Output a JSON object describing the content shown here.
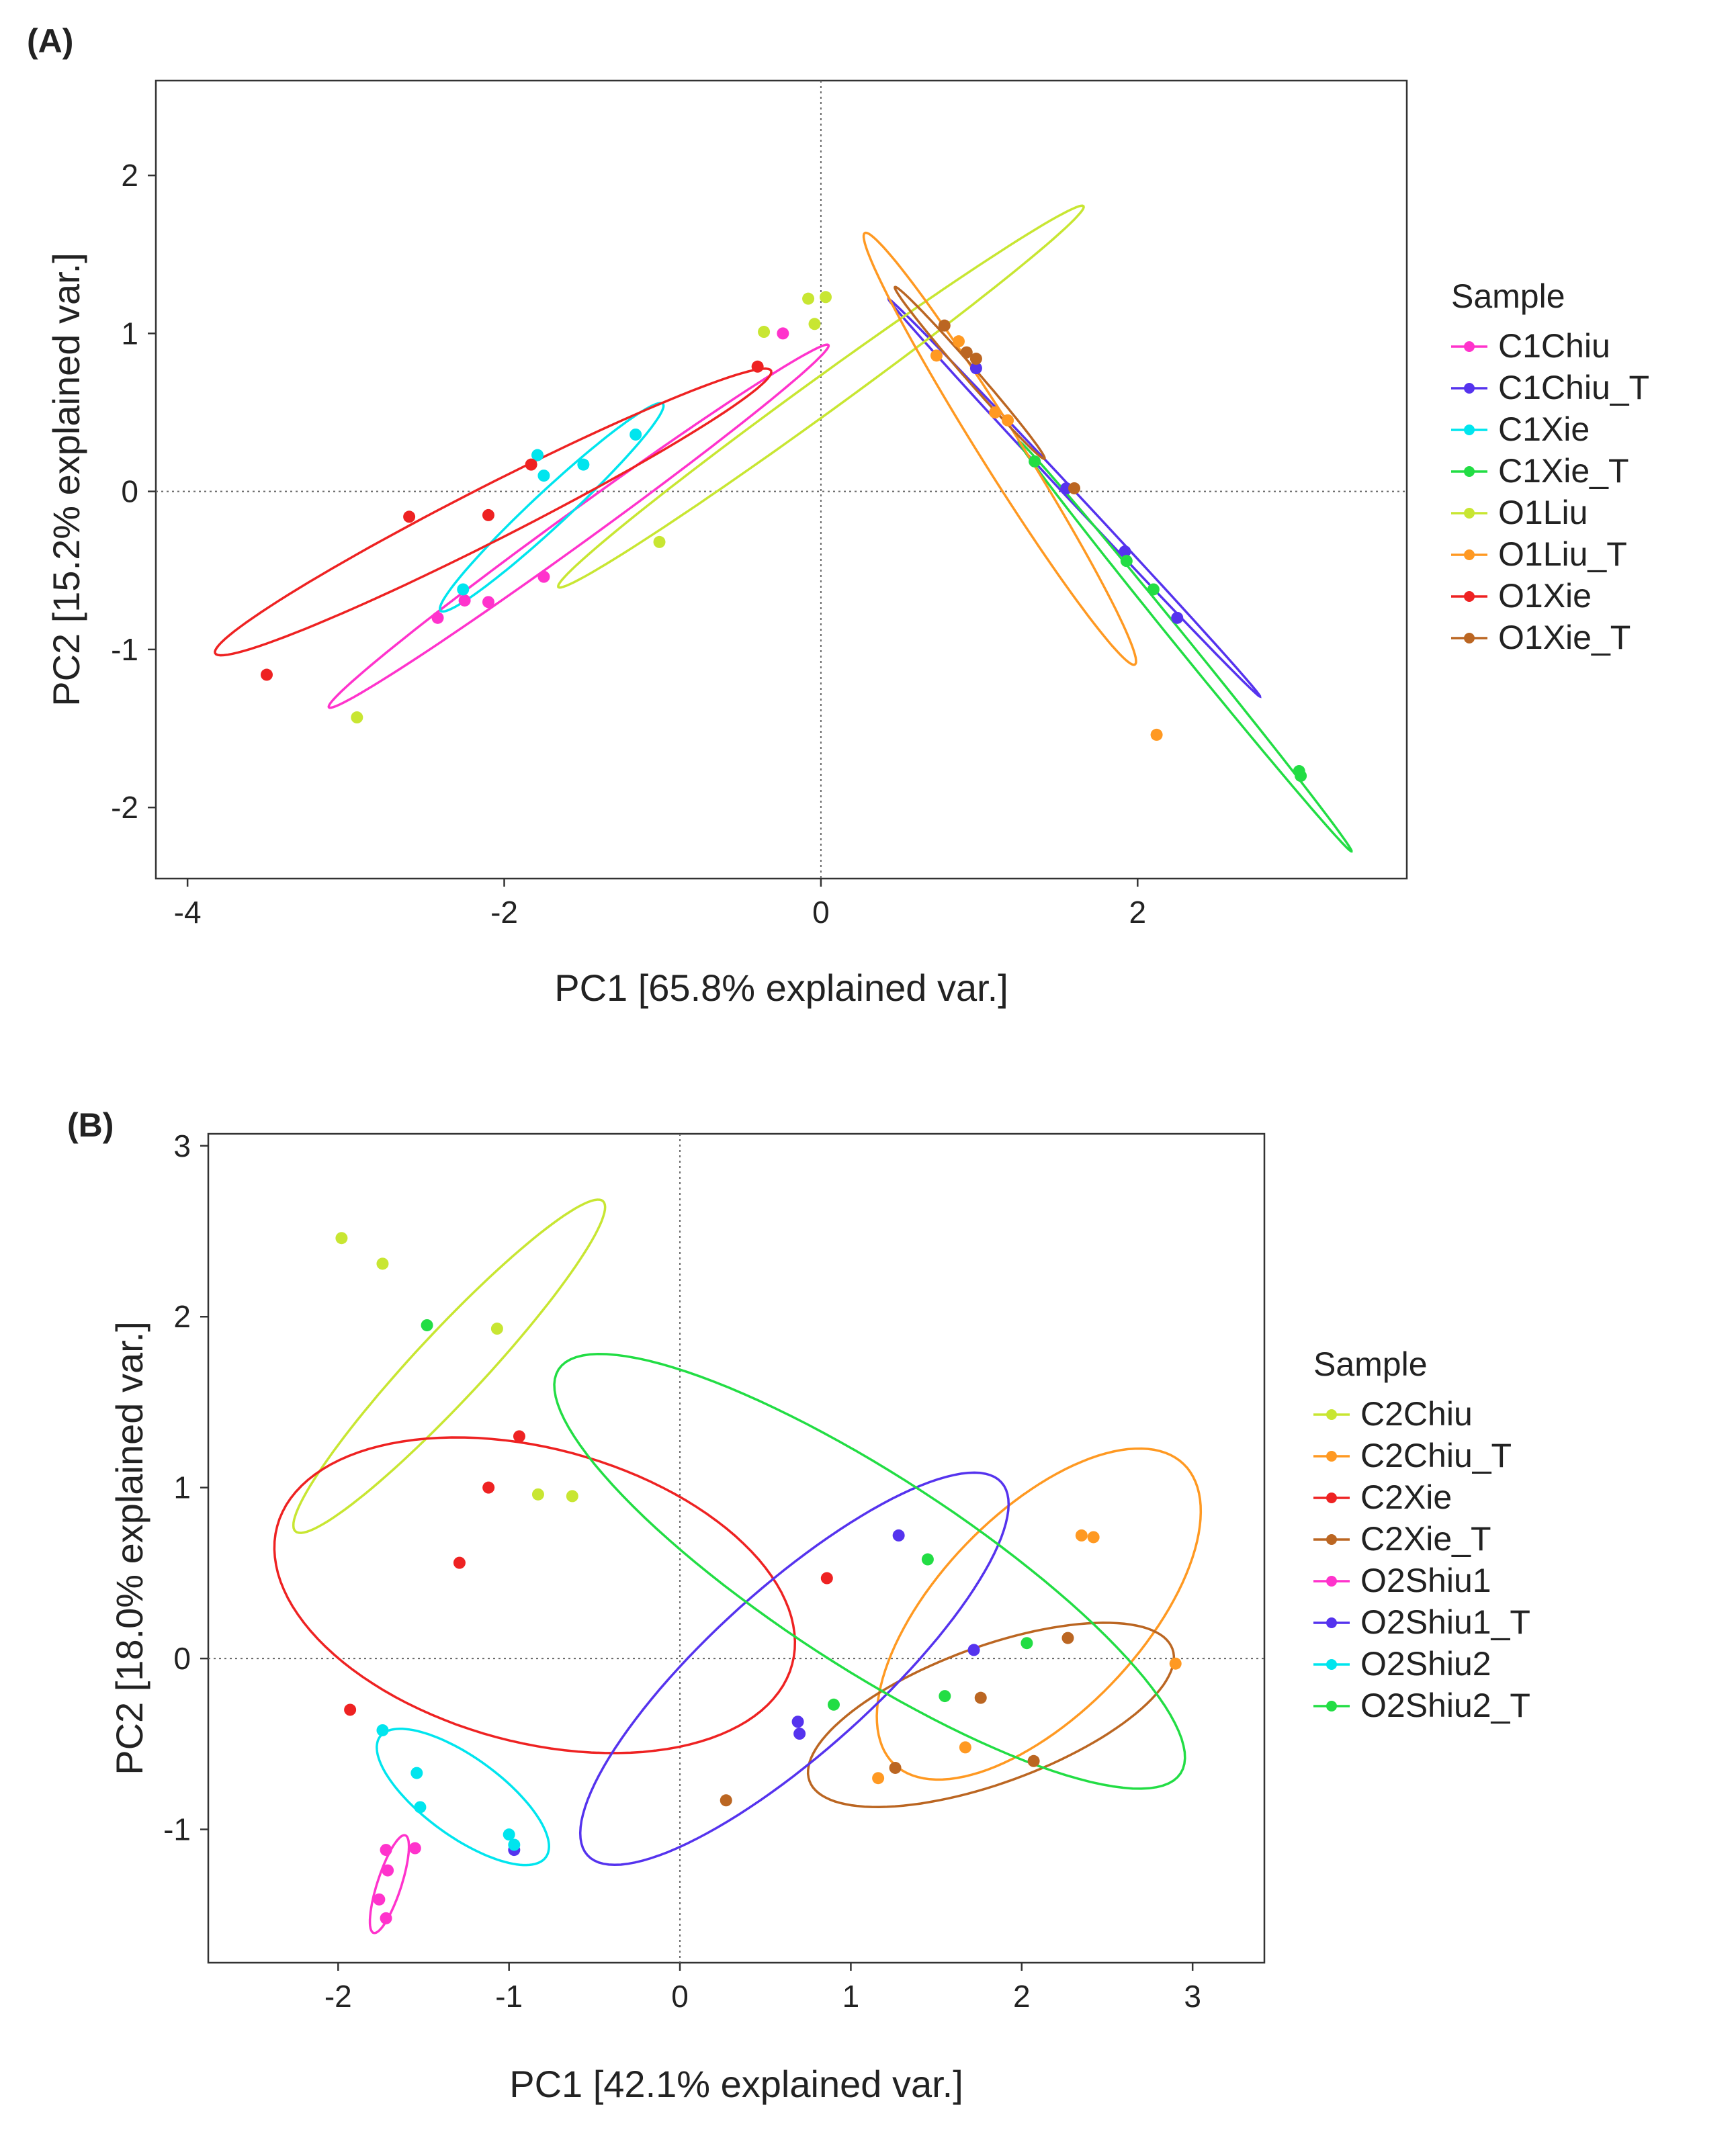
{
  "figure": {
    "panel_labels": [
      "(A)",
      "(B)"
    ]
  },
  "chart_data": [
    {
      "type": "scatter",
      "panel": "(A)",
      "xlabel": "PC1  [65.8% explained var.]",
      "ylabel": "PC2  [15.2% explained var.]",
      "xlim": [
        -4.2,
        3.7
      ],
      "ylim": [
        -2.45,
        2.6
      ],
      "xticks": [
        -4,
        -2,
        0,
        2
      ],
      "yticks": [
        -2,
        -1,
        0,
        1,
        2
      ],
      "reference_lines": {
        "x": 0,
        "y": 0
      },
      "legend": {
        "title": "Sample",
        "placement": "right"
      },
      "series": [
        {
          "name": "C1Chiu",
          "color": "#ff33cc",
          "points": [
            [
              -2.42,
              -0.8
            ],
            [
              -2.25,
              -0.69
            ],
            [
              -2.1,
              -0.7
            ],
            [
              -1.75,
              -0.54
            ],
            [
              -0.24,
              1.0
            ]
          ],
          "ellipse": {
            "cx": -1.53,
            "cy": -0.22,
            "rx": 1.95,
            "ry": 0.1,
            "angle": 36.0
          }
        },
        {
          "name": "C1Chiu_T",
          "color": "#5533ee",
          "points": [
            [
              0.98,
              0.78
            ],
            [
              1.55,
              0.02
            ],
            [
              1.92,
              -0.38
            ],
            [
              2.25,
              -0.8
            ]
          ],
          "ellipse": {
            "cx": 1.6,
            "cy": -0.04,
            "rx": 1.72,
            "ry": 0.03,
            "angle": -47.0
          }
        },
        {
          "name": "C1Xie",
          "color": "#00e5ee",
          "points": [
            [
              -2.26,
              -0.62
            ],
            [
              -1.79,
              0.23
            ],
            [
              -1.75,
              0.1
            ],
            [
              -1.5,
              0.17
            ],
            [
              -1.17,
              0.36
            ]
          ],
          "ellipse": {
            "cx": -1.7,
            "cy": -0.1,
            "rx": 0.96,
            "ry": 0.11,
            "angle": 43.0
          }
        },
        {
          "name": "C1Xie_T",
          "color": "#22dd44",
          "points": [
            [
              1.35,
              0.19
            ],
            [
              1.93,
              -0.44
            ],
            [
              2.1,
              -0.62
            ],
            [
              3.02,
              -1.77
            ],
            [
              3.03,
              -1.8
            ]
          ],
          "ellipse": {
            "cx": 2.3,
            "cy": -0.98,
            "rx": 1.67,
            "ry": 0.04,
            "angle": -51.0
          }
        },
        {
          "name": "O1Liu",
          "color": "#c8e632",
          "points": [
            [
              -2.93,
              -1.43
            ],
            [
              -0.36,
              1.01
            ],
            [
              -0.08,
              1.22
            ],
            [
              -0.04,
              1.06
            ],
            [
              0.03,
              1.23
            ],
            [
              -1.02,
              -0.32
            ]
          ],
          "ellipse": {
            "cx": -0.0,
            "cy": 0.6,
            "rx": 2.05,
            "ry": 0.11,
            "angle": 36.0
          }
        },
        {
          "name": "O1Liu_T",
          "color": "#ff9922",
          "points": [
            [
              0.73,
              0.86
            ],
            [
              0.87,
              0.95
            ],
            [
              1.1,
              0.5
            ],
            [
              1.18,
              0.45
            ],
            [
              2.12,
              -1.54
            ]
          ],
          "ellipse": {
            "cx": 1.13,
            "cy": 0.27,
            "rx": 1.61,
            "ry": 0.13,
            "angle": -58.0
          }
        },
        {
          "name": "O1Xie",
          "color": "#ee2222",
          "points": [
            [
              -3.5,
              -1.16
            ],
            [
              -2.6,
              -0.16
            ],
            [
              -2.1,
              -0.15
            ],
            [
              -1.83,
              0.17
            ],
            [
              -0.4,
              0.79
            ]
          ],
          "ellipse": {
            "cx": -2.07,
            "cy": -0.13,
            "rx": 1.97,
            "ry": 0.17,
            "angle": 27.0
          }
        },
        {
          "name": "O1Xie_T",
          "color": "#bb6622",
          "points": [
            [
              0.78,
              1.05
            ],
            [
              0.92,
              0.88
            ],
            [
              0.98,
              0.84
            ],
            [
              1.6,
              0.02
            ]
          ],
          "ellipse": {
            "cx": 0.94,
            "cy": 0.75,
            "rx": 0.72,
            "ry": 0.04,
            "angle": -49.0
          }
        }
      ]
    },
    {
      "type": "scatter",
      "panel": "(B)",
      "xlabel": "PC1  [42.1% explained var.]",
      "ylabel": "PC2  [18.0% explained var.]",
      "xlim": [
        -2.76,
        3.42
      ],
      "ylim": [
        -1.78,
        3.07
      ],
      "xticks": [
        -2,
        -1,
        0,
        1,
        2,
        3
      ],
      "yticks": [
        -1,
        0,
        1,
        2,
        3
      ],
      "reference_lines": {
        "x": 0,
        "y": 0
      },
      "legend": {
        "title": "Sample",
        "placement": "right"
      },
      "series": [
        {
          "name": "C2Chiu",
          "color": "#c8e632",
          "points": [
            [
              -1.98,
              2.46
            ],
            [
              -1.74,
              2.31
            ],
            [
              -1.07,
              1.93
            ],
            [
              -0.83,
              0.96
            ],
            [
              -0.63,
              0.95
            ]
          ],
          "ellipse": {
            "cx": -1.35,
            "cy": 1.71,
            "rx": 1.32,
            "ry": 0.2,
            "angle": 47.0
          }
        },
        {
          "name": "C2Chiu_T",
          "color": "#ff9922",
          "points": [
            [
              1.16,
              -0.7
            ],
            [
              1.67,
              -0.52
            ],
            [
              2.35,
              0.72
            ],
            [
              2.42,
              0.71
            ],
            [
              2.9,
              -0.03
            ]
          ],
          "ellipse": {
            "cx": 2.1,
            "cy": 0.26,
            "rx": 1.22,
            "ry": 0.59,
            "angle": 46.0
          }
        },
        {
          "name": "C2Xie",
          "color": "#ee2222",
          "points": [
            [
              -1.93,
              -0.3
            ],
            [
              -1.29,
              0.56
            ],
            [
              -1.12,
              1.0
            ],
            [
              -0.94,
              1.3
            ],
            [
              0.86,
              0.47
            ]
          ],
          "ellipse": {
            "cx": -0.85,
            "cy": 0.37,
            "rx": 1.56,
            "ry": 0.86,
            "angle": -15.0
          }
        },
        {
          "name": "C2Xie_T",
          "color": "#bb6622",
          "points": [
            [
              0.27,
              -0.83
            ],
            [
              1.26,
              -0.64
            ],
            [
              1.76,
              -0.23
            ],
            [
              2.07,
              -0.6
            ],
            [
              2.27,
              0.12
            ]
          ],
          "ellipse": {
            "cx": 1.82,
            "cy": -0.33,
            "rx": 1.13,
            "ry": 0.4,
            "angle": 20.0
          }
        },
        {
          "name": "O2Shiu1",
          "color": "#ff33cc",
          "points": [
            [
              -1.76,
              -1.41
            ],
            [
              -1.72,
              -1.52
            ],
            [
              -1.71,
              -1.24
            ],
            [
              -1.72,
              -1.12
            ],
            [
              -1.55,
              -1.11
            ]
          ],
          "ellipse": {
            "cx": -1.7,
            "cy": -1.32,
            "rx": 0.3,
            "ry": 0.07,
            "angle": 72.0
          }
        },
        {
          "name": "O2Shiu1_T",
          "color": "#5533ee",
          "points": [
            [
              -0.97,
              -1.12
            ],
            [
              0.69,
              -0.37
            ],
            [
              0.7,
              -0.44
            ],
            [
              1.28,
              0.72
            ],
            [
              1.72,
              0.05
            ]
          ],
          "ellipse": {
            "cx": 0.67,
            "cy": -0.06,
            "rx": 1.63,
            "ry": 0.48,
            "angle": 42.0
          }
        },
        {
          "name": "O2Shiu2",
          "color": "#00e5ee",
          "points": [
            [
              -1.74,
              -0.42
            ],
            [
              -1.54,
              -0.67
            ],
            [
              -1.52,
              -0.87
            ],
            [
              -1.0,
              -1.03
            ],
            [
              -0.97,
              -1.09
            ]
          ],
          "ellipse": {
            "cx": -1.27,
            "cy": -0.81,
            "rx": 0.6,
            "ry": 0.23,
            "angle": -36.0
          }
        },
        {
          "name": "O2Shiu2_T",
          "color": "#22dd44",
          "points": [
            [
              -1.48,
              1.95
            ],
            [
              0.9,
              -0.27
            ],
            [
              1.45,
              0.58
            ],
            [
              1.55,
              -0.22
            ],
            [
              2.03,
              0.09
            ]
          ],
          "ellipse": {
            "cx": 1.11,
            "cy": 0.51,
            "rx": 2.17,
            "ry": 0.56,
            "angle": -33.0
          }
        }
      ]
    }
  ]
}
